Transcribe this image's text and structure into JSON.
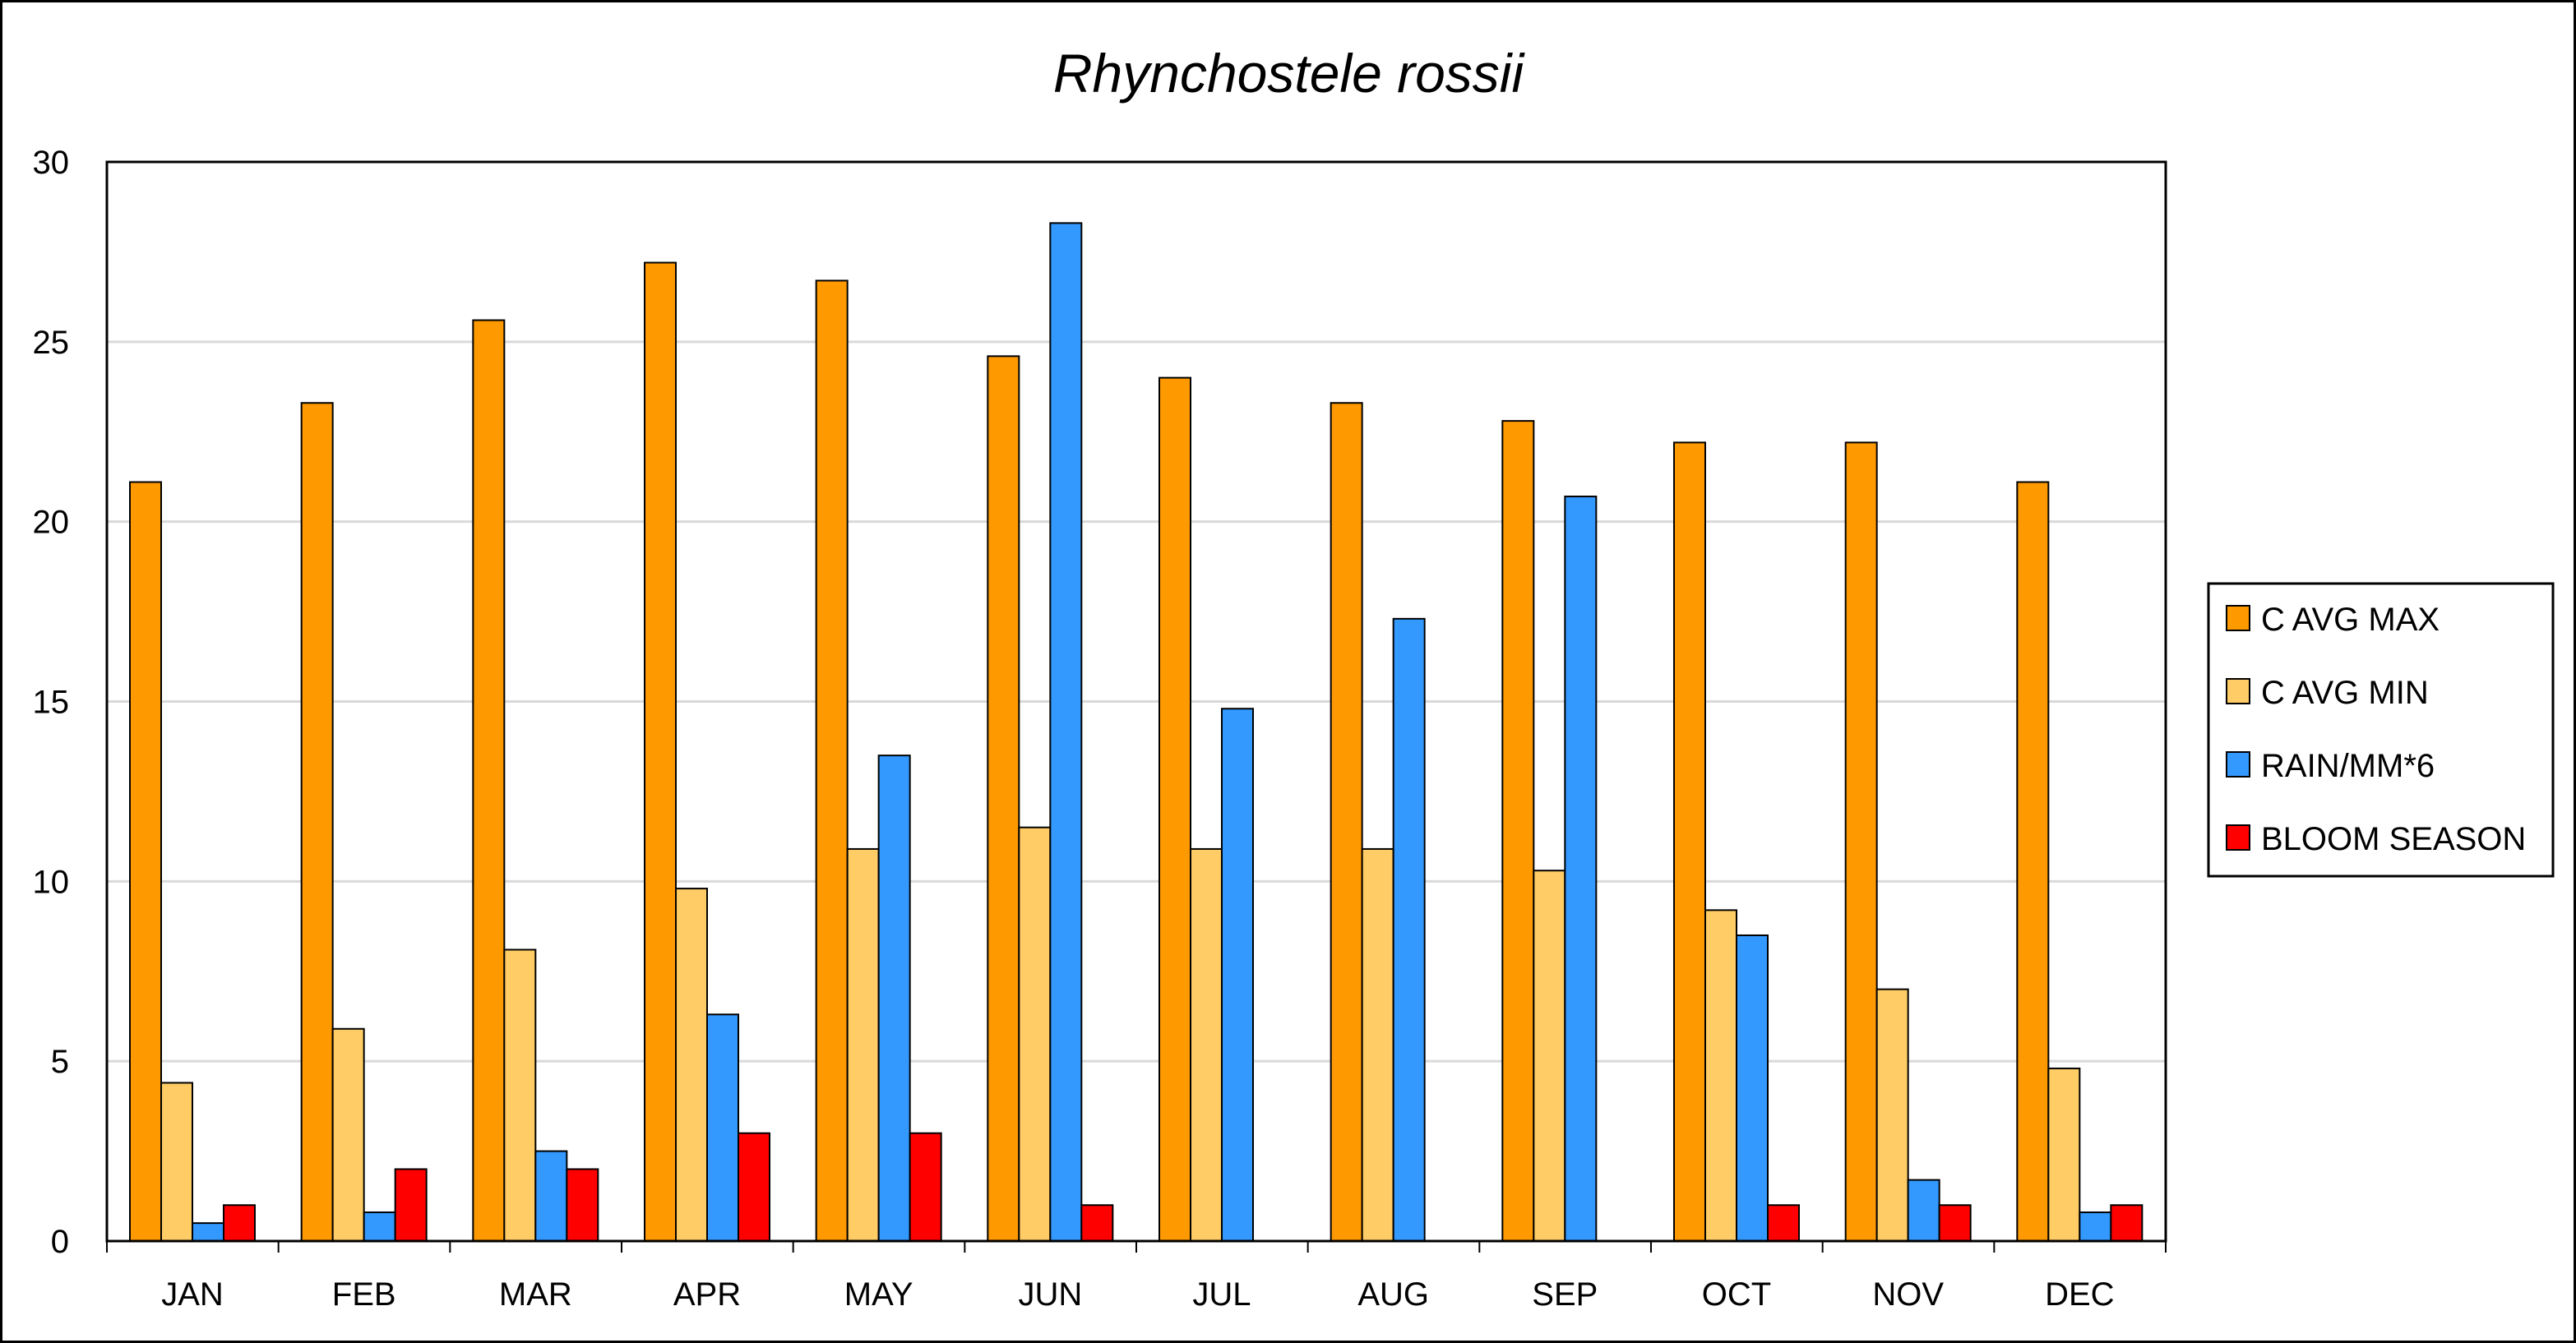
{
  "chart_data": {
    "type": "bar",
    "title": "Rhynchostele rossii",
    "xlabel": "",
    "ylabel": "",
    "ylim": [
      0,
      30
    ],
    "yticks": [
      0,
      5,
      10,
      15,
      20,
      25,
      30
    ],
    "grid": true,
    "legend_position": "right",
    "categories": [
      "JAN",
      "FEB",
      "MAR",
      "APR",
      "MAY",
      "JUN",
      "JUL",
      "AUG",
      "SEP",
      "OCT",
      "NOV",
      "DEC"
    ],
    "series": [
      {
        "name": "C AVG MAX",
        "color": "#FF9900",
        "values": [
          21.1,
          23.3,
          25.6,
          27.2,
          26.7,
          24.6,
          24.0,
          23.3,
          22.8,
          22.2,
          22.2,
          21.1
        ]
      },
      {
        "name": "C AVG MIN",
        "color": "#FFCC66",
        "values": [
          4.4,
          5.9,
          8.1,
          9.8,
          10.9,
          11.5,
          10.9,
          10.9,
          10.3,
          9.2,
          7.0,
          4.8
        ]
      },
      {
        "name": "RAIN/MM*6",
        "color": "#3399FF",
        "values": [
          0.5,
          0.8,
          2.5,
          6.3,
          13.5,
          28.3,
          14.8,
          17.3,
          20.7,
          8.5,
          1.7,
          0.8
        ]
      },
      {
        "name": "BLOOM SEASON",
        "color": "#FF0000",
        "values": [
          1,
          2,
          2,
          3,
          3,
          1,
          0,
          0,
          0,
          1,
          1,
          1
        ]
      }
    ]
  }
}
